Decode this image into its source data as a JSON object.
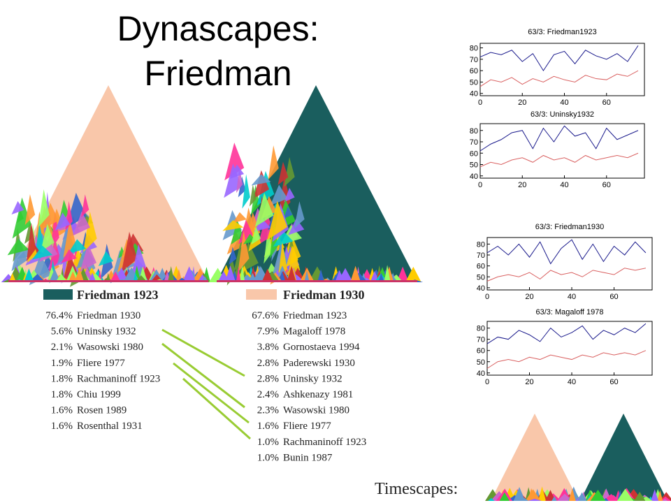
{
  "header": {
    "title_line1": "Dynascapes:",
    "title_line2": "Friedman"
  },
  "legends": [
    {
      "header": "Friedman 1923",
      "rows": [
        [
          "76.4%",
          "Friedman 1930"
        ],
        [
          "5.6%",
          "Uninsky 1932"
        ],
        [
          "2.1%",
          "Wasowski 1980"
        ],
        [
          "1.9%",
          "Fliere 1977"
        ],
        [
          "1.8%",
          "Rachmaninoff 1923"
        ],
        [
          "1.8%",
          "Chiu 1999"
        ],
        [
          "1.6%",
          "Rosen 1989"
        ],
        [
          "1.6%",
          "Rosenthal 1931"
        ]
      ]
    },
    {
      "header": "Friedman 1930",
      "rows": [
        [
          "67.6%",
          "Friedman 1923"
        ],
        [
          "7.9%",
          "Magaloff 1978"
        ],
        [
          "3.8%",
          "Gornostaeva 1994"
        ],
        [
          "2.8%",
          "Paderewski 1930"
        ],
        [
          "2.8%",
          "Uninsky 1932"
        ],
        [
          "2.4%",
          "Ashkenazy 1981"
        ],
        [
          "2.3%",
          "Wasowski 1980"
        ],
        [
          "1.6%",
          "Fliere 1977"
        ],
        [
          "1.0%",
          "Rachmaninoff 1923"
        ],
        [
          "1.0%",
          "Bunin 1987"
        ]
      ]
    }
  ],
  "chart_data": [
    {
      "type": "line",
      "title": "63/3: Friedman1923",
      "x": [
        0,
        5,
        10,
        15,
        20,
        25,
        30,
        35,
        40,
        45,
        50,
        55,
        60,
        65,
        70,
        75
      ],
      "xlim": [
        0,
        78
      ],
      "ylim": [
        38,
        84
      ],
      "xticks": [
        0,
        20,
        40,
        60
      ],
      "yticks": [
        40,
        50,
        60,
        70,
        80
      ],
      "series": [
        {
          "color": "#1a1a8c",
          "values": [
            72,
            76,
            74,
            78,
            68,
            75,
            60,
            74,
            77,
            66,
            78,
            73,
            70,
            75,
            68,
            82
          ]
        },
        {
          "color": "#d96060",
          "values": [
            46,
            52,
            50,
            54,
            48,
            53,
            50,
            55,
            52,
            50,
            56,
            53,
            52,
            57,
            55,
            60
          ]
        }
      ]
    },
    {
      "type": "line",
      "title": "63/3: Uninsky1932",
      "x": [
        0,
        5,
        10,
        15,
        20,
        25,
        30,
        35,
        40,
        45,
        50,
        55,
        60,
        65,
        70,
        75
      ],
      "xlim": [
        0,
        78
      ],
      "ylim": [
        38,
        86
      ],
      "xticks": [
        0,
        20,
        40,
        60
      ],
      "yticks": [
        40,
        50,
        60,
        70,
        80
      ],
      "series": [
        {
          "color": "#1a1a8c",
          "values": [
            62,
            68,
            72,
            78,
            80,
            64,
            82,
            70,
            84,
            75,
            78,
            64,
            82,
            72,
            76,
            80
          ]
        },
        {
          "color": "#d96060",
          "values": [
            48,
            52,
            50,
            54,
            56,
            52,
            58,
            54,
            56,
            52,
            58,
            54,
            56,
            58,
            56,
            60
          ]
        }
      ]
    },
    {
      "type": "line",
      "title": "63/3: Friedman1930",
      "x": [
        0,
        5,
        10,
        15,
        20,
        25,
        30,
        35,
        40,
        45,
        50,
        55,
        60,
        65,
        70,
        75
      ],
      "xlim": [
        0,
        78
      ],
      "ylim": [
        38,
        86
      ],
      "xticks": [
        0,
        20,
        40,
        60
      ],
      "yticks": [
        40,
        50,
        60,
        70,
        80
      ],
      "series": [
        {
          "color": "#1a1a8c",
          "values": [
            72,
            78,
            70,
            80,
            68,
            82,
            62,
            76,
            84,
            66,
            80,
            64,
            78,
            70,
            82,
            72
          ]
        },
        {
          "color": "#d96060",
          "values": [
            46,
            50,
            52,
            50,
            54,
            48,
            56,
            52,
            54,
            50,
            56,
            54,
            52,
            58,
            56,
            58
          ]
        }
      ]
    },
    {
      "type": "line",
      "title": "63/3: Magaloff 1978",
      "x": [
        0,
        5,
        10,
        15,
        20,
        25,
        30,
        35,
        40,
        45,
        50,
        55,
        60,
        65,
        70,
        75
      ],
      "xlim": [
        0,
        78
      ],
      "ylim": [
        38,
        86
      ],
      "xticks": [
        0,
        20,
        40,
        60
      ],
      "yticks": [
        40,
        50,
        60,
        70,
        80
      ],
      "series": [
        {
          "color": "#1a1a8c",
          "values": [
            66,
            72,
            70,
            78,
            74,
            68,
            80,
            72,
            76,
            82,
            70,
            78,
            74,
            80,
            76,
            84
          ]
        },
        {
          "color": "#d96060",
          "values": [
            44,
            50,
            52,
            50,
            54,
            52,
            56,
            54,
            52,
            56,
            54,
            58,
            56,
            58,
            56,
            60
          ]
        }
      ]
    }
  ],
  "footer": {
    "label": "Timescapes:"
  }
}
